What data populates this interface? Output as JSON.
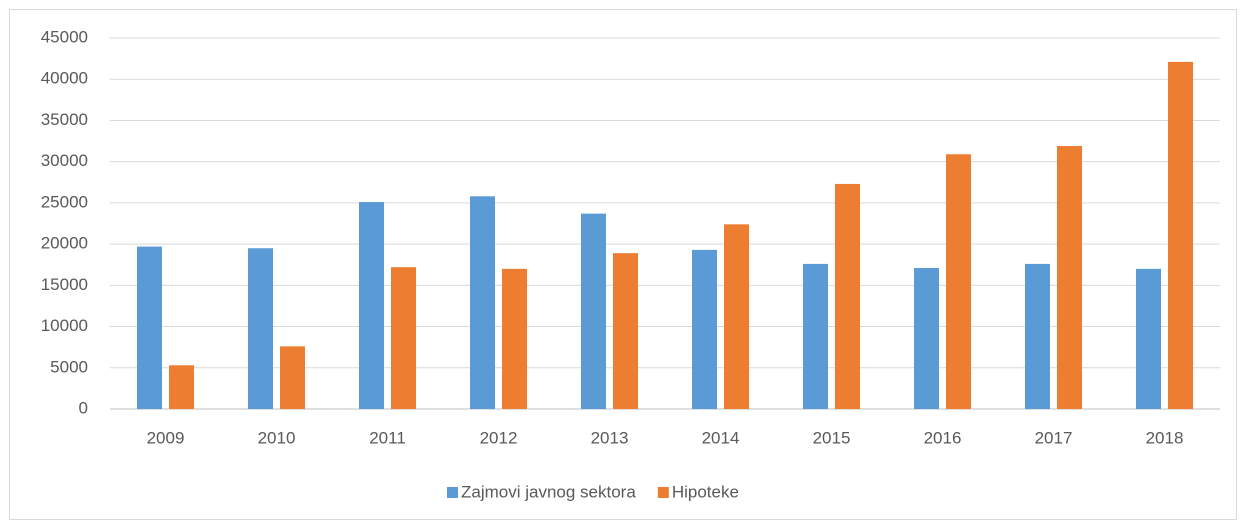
{
  "chart_data": {
    "type": "bar",
    "categories": [
      "2009",
      "2010",
      "2011",
      "2012",
      "2013",
      "2014",
      "2015",
      "2016",
      "2017",
      "2018"
    ],
    "series": [
      {
        "name": "Zajmovi javnog sektora",
        "color": "#5b9bd5",
        "values": [
          19700,
          19500,
          25100,
          25800,
          23700,
          19300,
          17600,
          17100,
          17600,
          17000
        ]
      },
      {
        "name": "Hipoteke",
        "color": "#ed7d31",
        "values": [
          5300,
          7600,
          17200,
          17000,
          18900,
          22400,
          27300,
          30900,
          31900,
          42100
        ]
      }
    ],
    "ylim": [
      0,
      45000
    ],
    "yticks": [
      0,
      5000,
      10000,
      15000,
      20000,
      25000,
      30000,
      35000,
      40000,
      45000
    ],
    "grid": true
  }
}
